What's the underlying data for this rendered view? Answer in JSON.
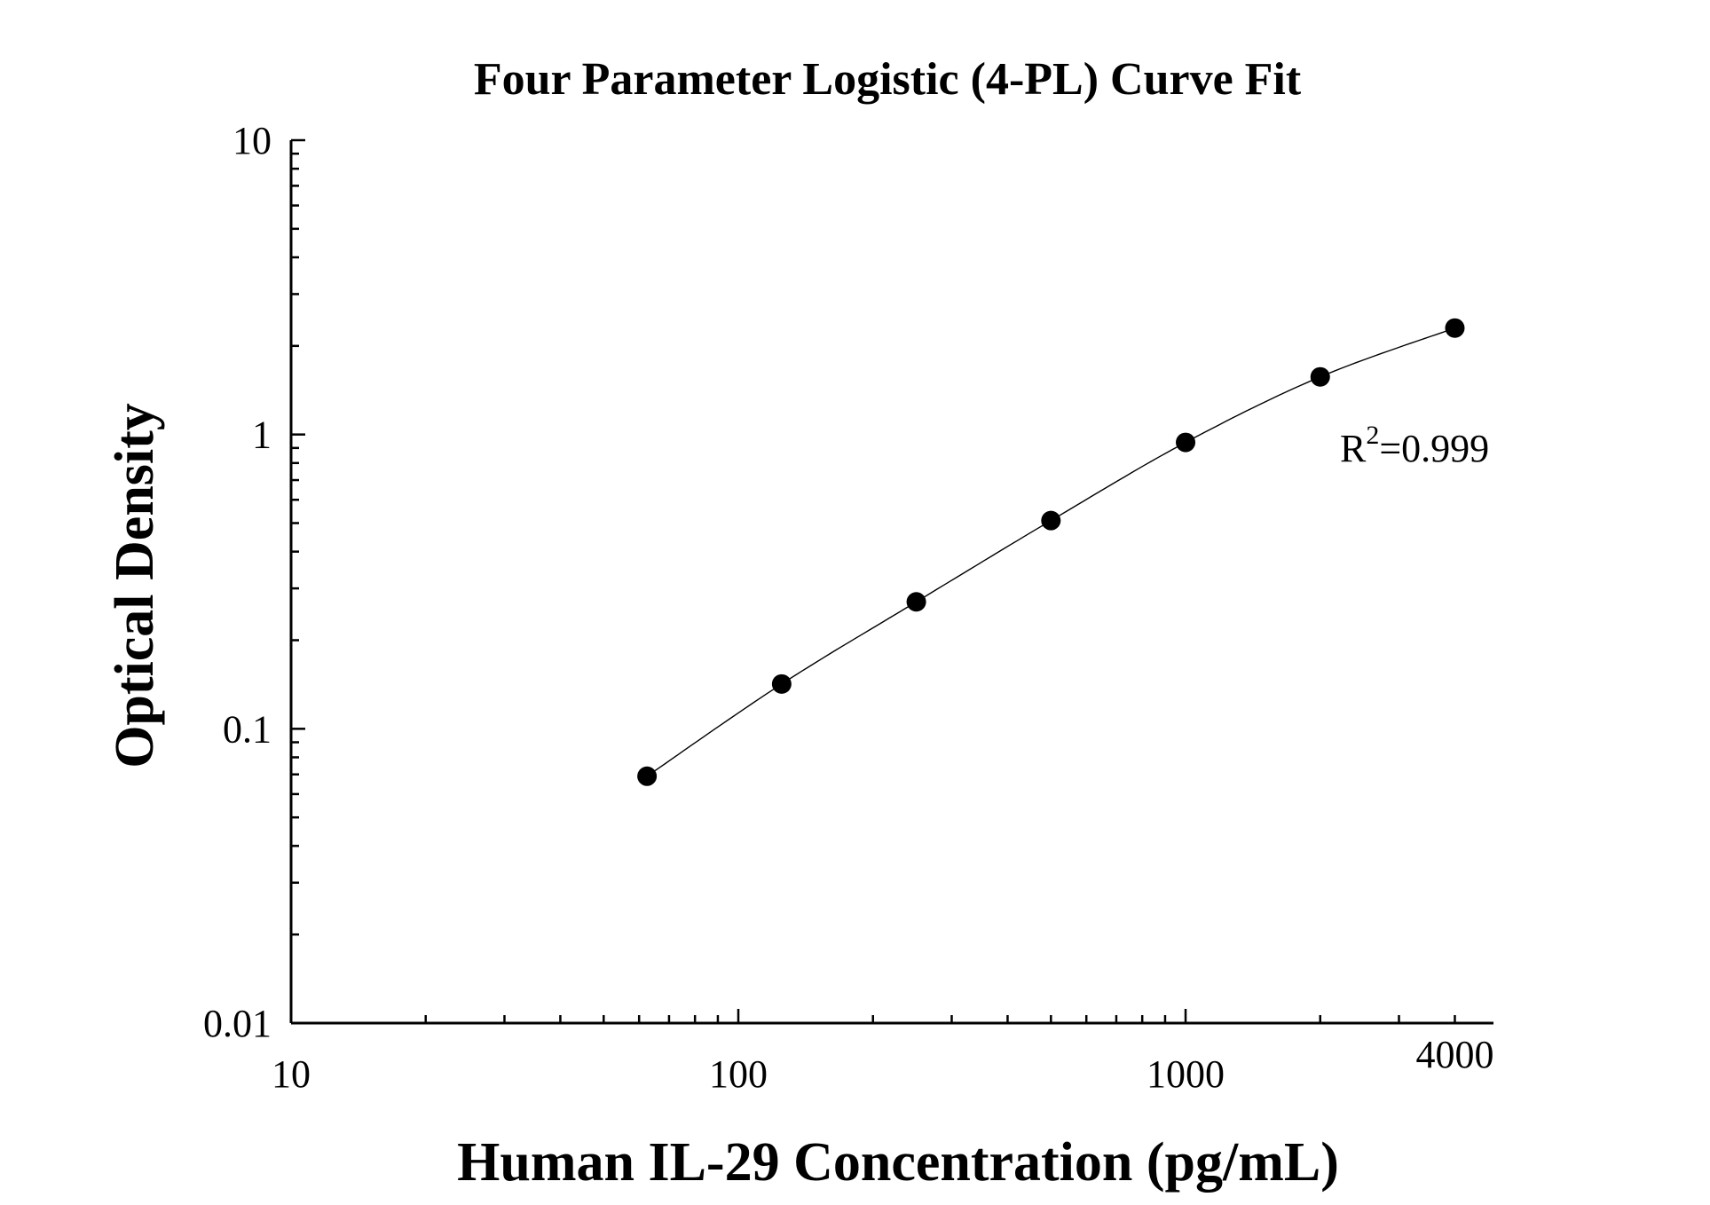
{
  "chart_data": {
    "type": "scatter",
    "title": "Four Parameter Logistic (4-PL) Curve Fit",
    "xlabel": "Human IL-29 Concentration (pg/mL)",
    "ylabel": "Optical Density",
    "x_scale": "log",
    "y_scale": "log",
    "xlim": [
      10,
      4000
    ],
    "ylim": [
      0.01,
      10
    ],
    "x_ticks": [
      {
        "value": 10,
        "label": "10"
      },
      {
        "value": 100,
        "label": "100"
      },
      {
        "value": 1000,
        "label": "1000"
      },
      {
        "value": 4000,
        "label": "4000"
      }
    ],
    "y_ticks": [
      {
        "value": 0.01,
        "label": "0.01"
      },
      {
        "value": 0.1,
        "label": "0.1"
      },
      {
        "value": 1,
        "label": "1"
      },
      {
        "value": 10,
        "label": "10"
      }
    ],
    "grid": false,
    "series": [
      {
        "style": "markers",
        "color": "#000000",
        "x": [
          62.5,
          125,
          250,
          500,
          1000,
          2000,
          4000
        ],
        "y": [
          0.069,
          0.142,
          0.27,
          0.51,
          0.94,
          1.57,
          2.3
        ]
      }
    ],
    "annotation": {
      "base": "R",
      "superscript": "2",
      "rest": "=0.999"
    }
  }
}
